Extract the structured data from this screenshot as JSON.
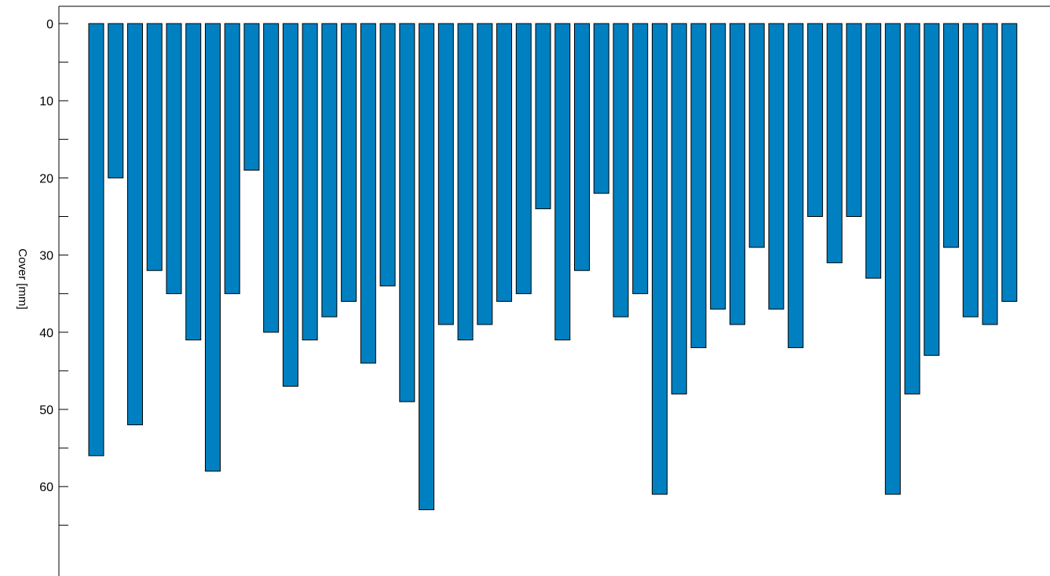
{
  "chart_data": {
    "type": "bar",
    "orientation": "vertical",
    "y_axis_inverted": true,
    "ylabel": "Cover [mm]",
    "xlabel": "",
    "title": "",
    "ylim": [
      0,
      70
    ],
    "y_major_ticks": [
      0,
      10,
      20,
      30,
      40,
      50,
      60
    ],
    "y_minor_ticks": [
      5,
      15,
      25,
      35,
      45,
      55,
      65
    ],
    "grid": false,
    "legend": "none",
    "bar_color": "#0080C0",
    "values": [
      56,
      20,
      52,
      32,
      35,
      41,
      58,
      35,
      19,
      40,
      47,
      41,
      38,
      36,
      44,
      34,
      49,
      63,
      39,
      41,
      39,
      36,
      35,
      24,
      41,
      32,
      22,
      38,
      35,
      61,
      48,
      42,
      37,
      39,
      29,
      37,
      42,
      25,
      31,
      25,
      33,
      61,
      48,
      43,
      29,
      38,
      39,
      36
    ]
  }
}
